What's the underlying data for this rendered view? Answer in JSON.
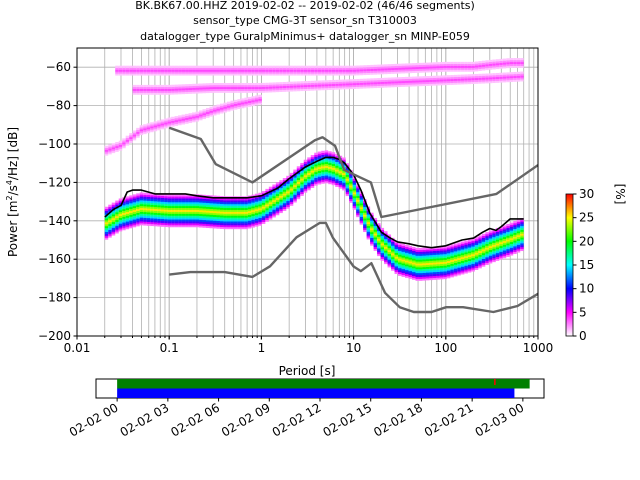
{
  "chart_data": [
    {
      "type": "heatmap",
      "title_lines": [
        "BK.BK67.00.HHZ   2019-02-02 -- 2019-02-02  (46/46 segments)",
        "sensor_type CMG-3T sensor_sn T310003",
        "datalogger_type GuralpMinimus+ datalogger_sn MINP-E059"
      ],
      "xlabel": "Period [s]",
      "ylabel_parts": [
        "Power [m",
        "2",
        "/s",
        "4",
        "/Hz] [dB]"
      ],
      "x_scale": "log",
      "xlim": [
        0.01,
        1000
      ],
      "ylim": [
        -200,
        -50
      ],
      "x_ticks": [
        {
          "value": 0.01,
          "label": "0.01"
        },
        {
          "value": 0.1,
          "label": "0.1"
        },
        {
          "value": 1,
          "label": "1"
        },
        {
          "value": 10,
          "label": "10"
        },
        {
          "value": 100,
          "label": "100"
        },
        {
          "value": 1000,
          "label": "1000"
        }
      ],
      "y_ticks": [
        {
          "value": -60,
          "label": "−60"
        },
        {
          "value": -80,
          "label": "−80"
        },
        {
          "value": -100,
          "label": "−100"
        },
        {
          "value": -120,
          "label": "−120"
        },
        {
          "value": -140,
          "label": "−140"
        },
        {
          "value": -160,
          "label": "−160"
        },
        {
          "value": -180,
          "label": "−180"
        },
        {
          "value": -200,
          "label": "−200"
        }
      ],
      "grid": true,
      "colorbar": {
        "label": "[%]",
        "range": [
          0,
          30
        ],
        "ticks": [
          {
            "value": 0,
            "label": "0"
          },
          {
            "value": 5,
            "label": "5"
          },
          {
            "value": 10,
            "label": "10"
          },
          {
            "value": 15,
            "label": "15"
          },
          {
            "value": 20,
            "label": "20"
          },
          {
            "value": 25,
            "label": "25"
          },
          {
            "value": 30,
            "label": "30"
          }
        ],
        "colors": [
          "#ffffff",
          "#ff00ff",
          "#0000ff",
          "#00ffff",
          "#00ff00",
          "#ffff00",
          "#ff0000"
        ]
      },
      "density_ridges": [
        {
          "x": [
            0.02,
            0.03,
            0.05,
            0.1,
            0.2,
            0.4,
            0.7,
            1,
            2,
            3,
            4,
            5,
            6,
            8,
            10,
            15,
            20,
            30,
            50,
            100,
            200,
            300,
            500,
            700
          ],
          "y": [
            -142,
            -137,
            -134,
            -135,
            -135,
            -136,
            -136,
            -134,
            -125,
            -117,
            -113,
            -112,
            -113,
            -116,
            -125,
            -143,
            -152,
            -160,
            -163,
            -162,
            -158,
            -154,
            -150,
            -147
          ]
        },
        {
          "x": [
            0.02,
            0.03,
            0.05,
            0.1,
            0.2,
            0.3,
            0.5,
            1
          ],
          "y": [
            -104,
            -101,
            -93,
            -89,
            -86,
            -83,
            -80,
            -77
          ]
        },
        {
          "x": [
            0.025,
            0.05,
            0.1,
            0.3,
            1,
            3,
            10,
            30,
            100,
            200,
            300,
            500,
            700
          ],
          "y": [
            -62,
            -62,
            -62,
            -62,
            -62,
            -62,
            -62,
            -61,
            -60,
            -60,
            -59,
            -58,
            -58
          ]
        },
        {
          "x": [
            0.04,
            0.1,
            0.3,
            1,
            3,
            10,
            30,
            100,
            300,
            700
          ],
          "y": [
            -72,
            -72,
            -71,
            -71,
            -70,
            -69,
            -68,
            -67,
            -66,
            -65
          ]
        }
      ],
      "series": [
        {
          "role": "mean",
          "x": [
            0.02,
            0.025,
            0.03,
            0.035,
            0.04,
            0.05,
            0.07,
            0.1,
            0.15,
            0.2,
            0.3,
            0.5,
            0.7,
            1,
            1.5,
            2,
            3,
            4,
            5,
            6,
            7,
            8,
            10,
            12,
            15,
            20,
            25,
            30,
            40,
            50,
            70,
            100,
            150,
            200,
            250,
            300,
            350,
            400,
            500,
            700
          ],
          "y": [
            -138,
            -134,
            -132,
            -125,
            -124,
            -124,
            -126,
            -126,
            -126,
            -127,
            -128,
            -128,
            -128,
            -127,
            -123,
            -118,
            -112,
            -109,
            -107,
            -107,
            -108,
            -110,
            -116,
            -124,
            -136,
            -146,
            -149,
            -151,
            -152,
            -153,
            -154,
            -153,
            -150,
            -149,
            -146,
            -144,
            -145,
            -143,
            -139,
            -139
          ]
        },
        {
          "role": "noise_model_high",
          "x": [
            0.1,
            0.22,
            0.32,
            0.8,
            3.8,
            4.6,
            6.3,
            7.9,
            15.4,
            20,
            354.8,
            1000
          ],
          "y": [
            -91.5,
            -97.4,
            -110.5,
            -120,
            -98,
            -96.5,
            -101,
            -113.5,
            -120,
            -138,
            -126,
            -111
          ]
        },
        {
          "role": "noise_model_low",
          "x": [
            0.1,
            0.17,
            0.4,
            0.8,
            1.24,
            2.4,
            4.3,
            5,
            6,
            10,
            12,
            15.6,
            21.9,
            31.6,
            45,
            70,
            101,
            154,
            328,
            600,
            1000
          ],
          "y": [
            -168,
            -166.7,
            -166.7,
            -169.2,
            -163.7,
            -148.6,
            -141.1,
            -141.1,
            -149,
            -163.8,
            -166.2,
            -162.1,
            -177.5,
            -185,
            -187.5,
            -187.5,
            -185,
            -185,
            -187.5,
            -184.4,
            -178
          ]
        }
      ]
    },
    {
      "type": "timeline",
      "x_ticks": [
        "02-02 00",
        "02-02 03",
        "02-02 06",
        "02-02 09",
        "02-02 12",
        "02-02 15",
        "02-02 18",
        "02-02 21",
        "02-03 00"
      ],
      "x_range_hours": [
        -1.25,
        25.25
      ],
      "bars": [
        {
          "color": "#008000",
          "start_hour": 0,
          "end_hour": 24.4
        },
        {
          "color": "#0000ff",
          "start_hour": 0,
          "end_hour": 23.5
        }
      ],
      "marker": {
        "color": "#ff0000",
        "hour": 22.3
      }
    }
  ]
}
